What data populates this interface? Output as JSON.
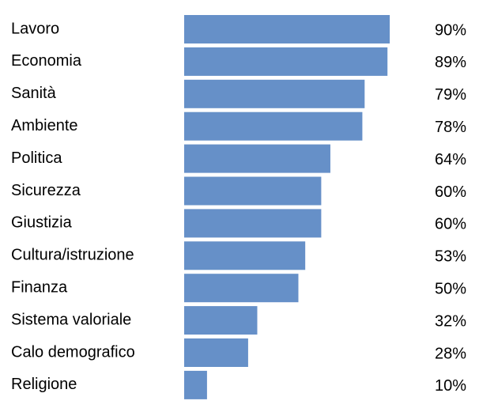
{
  "chart_data": {
    "type": "bar",
    "orientation": "horizontal",
    "categories": [
      "Lavoro",
      "Economia",
      "Sanità",
      "Ambiente",
      "Politica",
      "Sicurezza",
      "Giustizia",
      "Cultura/istruzione",
      "Finanza",
      "Sistema valoriale",
      "Calo demografico",
      "Religione"
    ],
    "values": [
      90,
      89,
      79,
      78,
      64,
      60,
      60,
      53,
      50,
      32,
      28,
      10
    ],
    "value_labels": [
      "90%",
      "89%",
      "79%",
      "78%",
      "64%",
      "60%",
      "60%",
      "53%",
      "50%",
      "32%",
      "28%",
      "10%"
    ],
    "color": "#6690c8",
    "xlim": [
      0,
      100
    ]
  }
}
